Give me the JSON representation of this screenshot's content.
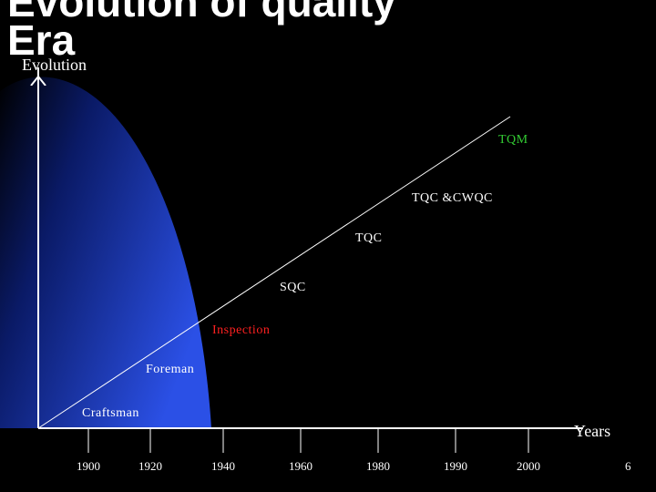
{
  "header": {
    "title_line1": "Evolution of quality",
    "title_line2": "Era"
  },
  "axes": {
    "y_label": "Evolution",
    "x_label": "Years",
    "x_ticks": [
      "1900",
      "1920",
      "1940",
      "1960",
      "1980",
      "1990",
      "2000"
    ]
  },
  "stages": [
    {
      "label": "Craftsman",
      "color": "#ffffff"
    },
    {
      "label": "Foreman",
      "color": "#ffffff"
    },
    {
      "label": "Inspection",
      "color": "#ff2020"
    },
    {
      "label": "SQC",
      "color": "#ffffff"
    },
    {
      "label": "TQC",
      "color": "#ffffff"
    },
    {
      "label": "TQC &CWQC",
      "color": "#ffffff"
    },
    {
      "label": "TQM",
      "color": "#33cc33"
    }
  ],
  "footer": {
    "page_number": "6"
  }
}
